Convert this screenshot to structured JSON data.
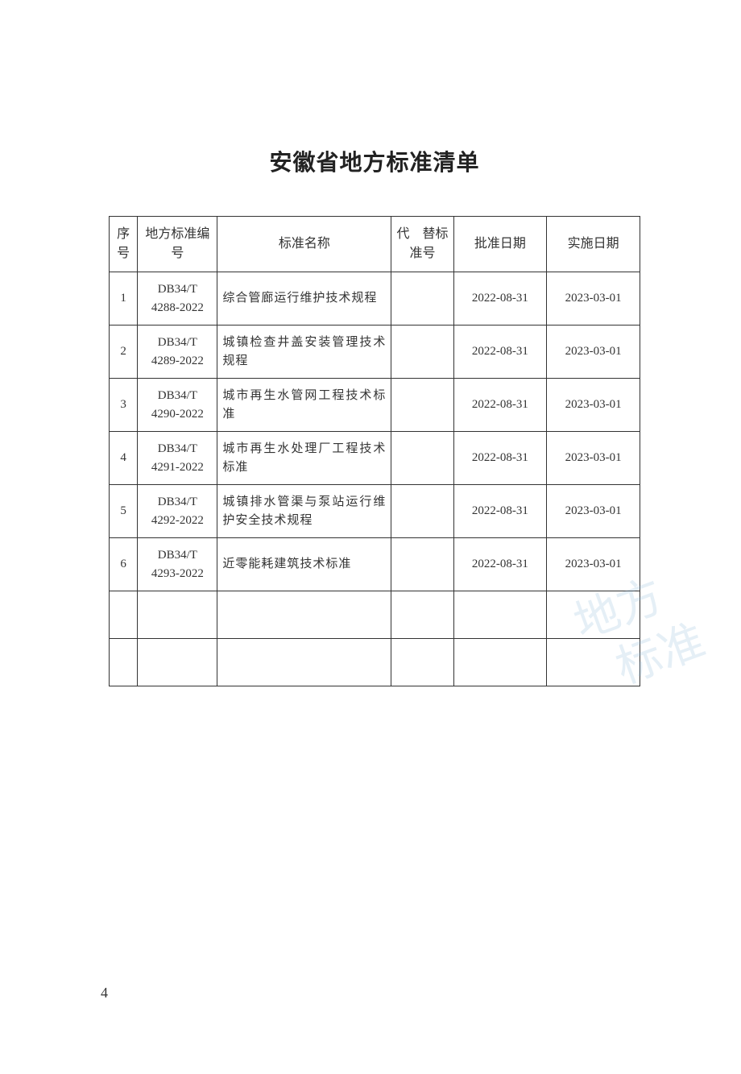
{
  "document": {
    "title": "安徽省地方标准清单",
    "page_number": "4"
  },
  "table": {
    "headers": {
      "seq": "序号",
      "code": "地方标准编　号",
      "name": "标准名称",
      "replaced": "代　替标准号",
      "approval": "批准日期",
      "implement": "实施日期"
    },
    "rows": [
      {
        "seq": "1",
        "code_top": "DB34/T",
        "code_bottom": "4288-2022",
        "name": "综合管廊运行维护技术规程",
        "replaced": "",
        "approval": "2022-08-31",
        "implement": "2023-03-01"
      },
      {
        "seq": "2",
        "code_top": "DB34/T",
        "code_bottom": "4289-2022",
        "name": "城镇检查井盖安装管理技术规程",
        "replaced": "",
        "approval": "2022-08-31",
        "implement": "2023-03-01"
      },
      {
        "seq": "3",
        "code_top": "DB34/T",
        "code_bottom": "4290-2022",
        "name": "城市再生水管网工程技术标准",
        "replaced": "",
        "approval": "2022-08-31",
        "implement": "2023-03-01"
      },
      {
        "seq": "4",
        "code_top": "DB34/T",
        "code_bottom": "4291-2022",
        "name": "城市再生水处理厂工程技术标准",
        "replaced": "",
        "approval": "2022-08-31",
        "implement": "2023-03-01"
      },
      {
        "seq": "5",
        "code_top": "DB34/T",
        "code_bottom": "4292-2022",
        "name": "城镇排水管渠与泵站运行维护安全技术规程",
        "replaced": "",
        "approval": "2022-08-31",
        "implement": "2023-03-01"
      },
      {
        "seq": "6",
        "code_top": "DB34/T",
        "code_bottom": "4293-2022",
        "name": "近零能耗建筑技术标准",
        "replaced": "",
        "approval": "2022-08-31",
        "implement": "2023-03-01"
      }
    ],
    "empty_rows": 2
  },
  "style": {
    "page_bg": "#ffffff",
    "text_color": "#333333",
    "border_color": "#333333",
    "title_fontsize": 28,
    "cell_fontsize": 15,
    "header_fontsize": 16,
    "watermark_color": "#8fb7da"
  }
}
